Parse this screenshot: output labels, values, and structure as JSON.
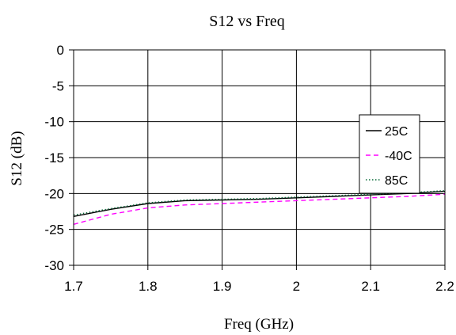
{
  "chart_data": {
    "type": "line",
    "title": "S12 vs Freq",
    "xlabel": "Freq (GHz)",
    "ylabel": "S12 (dB)",
    "xlim": [
      1.7,
      2.2
    ],
    "ylim": [
      -30,
      0
    ],
    "xticks": [
      "1.7",
      "1.8",
      "1.9",
      "2",
      "2.1",
      "2.2"
    ],
    "yticks": [
      "0",
      "-5",
      "-10",
      "-15",
      "-20",
      "-25",
      "-30"
    ],
    "grid": true,
    "legend_position": "right",
    "series": [
      {
        "name": "25C",
        "color": "#000000",
        "dash": "solid",
        "x": [
          1.7,
          1.75,
          1.8,
          1.85,
          1.9,
          1.95,
          2.0,
          2.05,
          2.1,
          2.15,
          2.2
        ],
        "y": [
          -23.2,
          -22.2,
          -21.4,
          -21.0,
          -20.9,
          -20.8,
          -20.6,
          -20.4,
          -20.2,
          -20.0,
          -19.7
        ]
      },
      {
        "name": "-40C",
        "color": "#ff00ff",
        "dash": "dashed",
        "x": [
          1.7,
          1.75,
          1.8,
          1.85,
          1.9,
          1.95,
          2.0,
          2.05,
          2.1,
          2.15,
          2.2
        ],
        "y": [
          -24.3,
          -22.9,
          -22.0,
          -21.6,
          -21.4,
          -21.2,
          -21.0,
          -20.8,
          -20.6,
          -20.4,
          -20.1
        ]
      },
      {
        "name": "85C",
        "color": "#0a6b3a",
        "dash": "dotted",
        "x": [
          1.7,
          1.75,
          1.8,
          1.85,
          1.9,
          1.95,
          2.0,
          2.05,
          2.1,
          2.15,
          2.2
        ],
        "y": [
          -23.0,
          -22.1,
          -21.3,
          -20.9,
          -20.8,
          -20.7,
          -20.5,
          -20.3,
          -20.1,
          -19.9,
          -19.6
        ]
      }
    ]
  }
}
